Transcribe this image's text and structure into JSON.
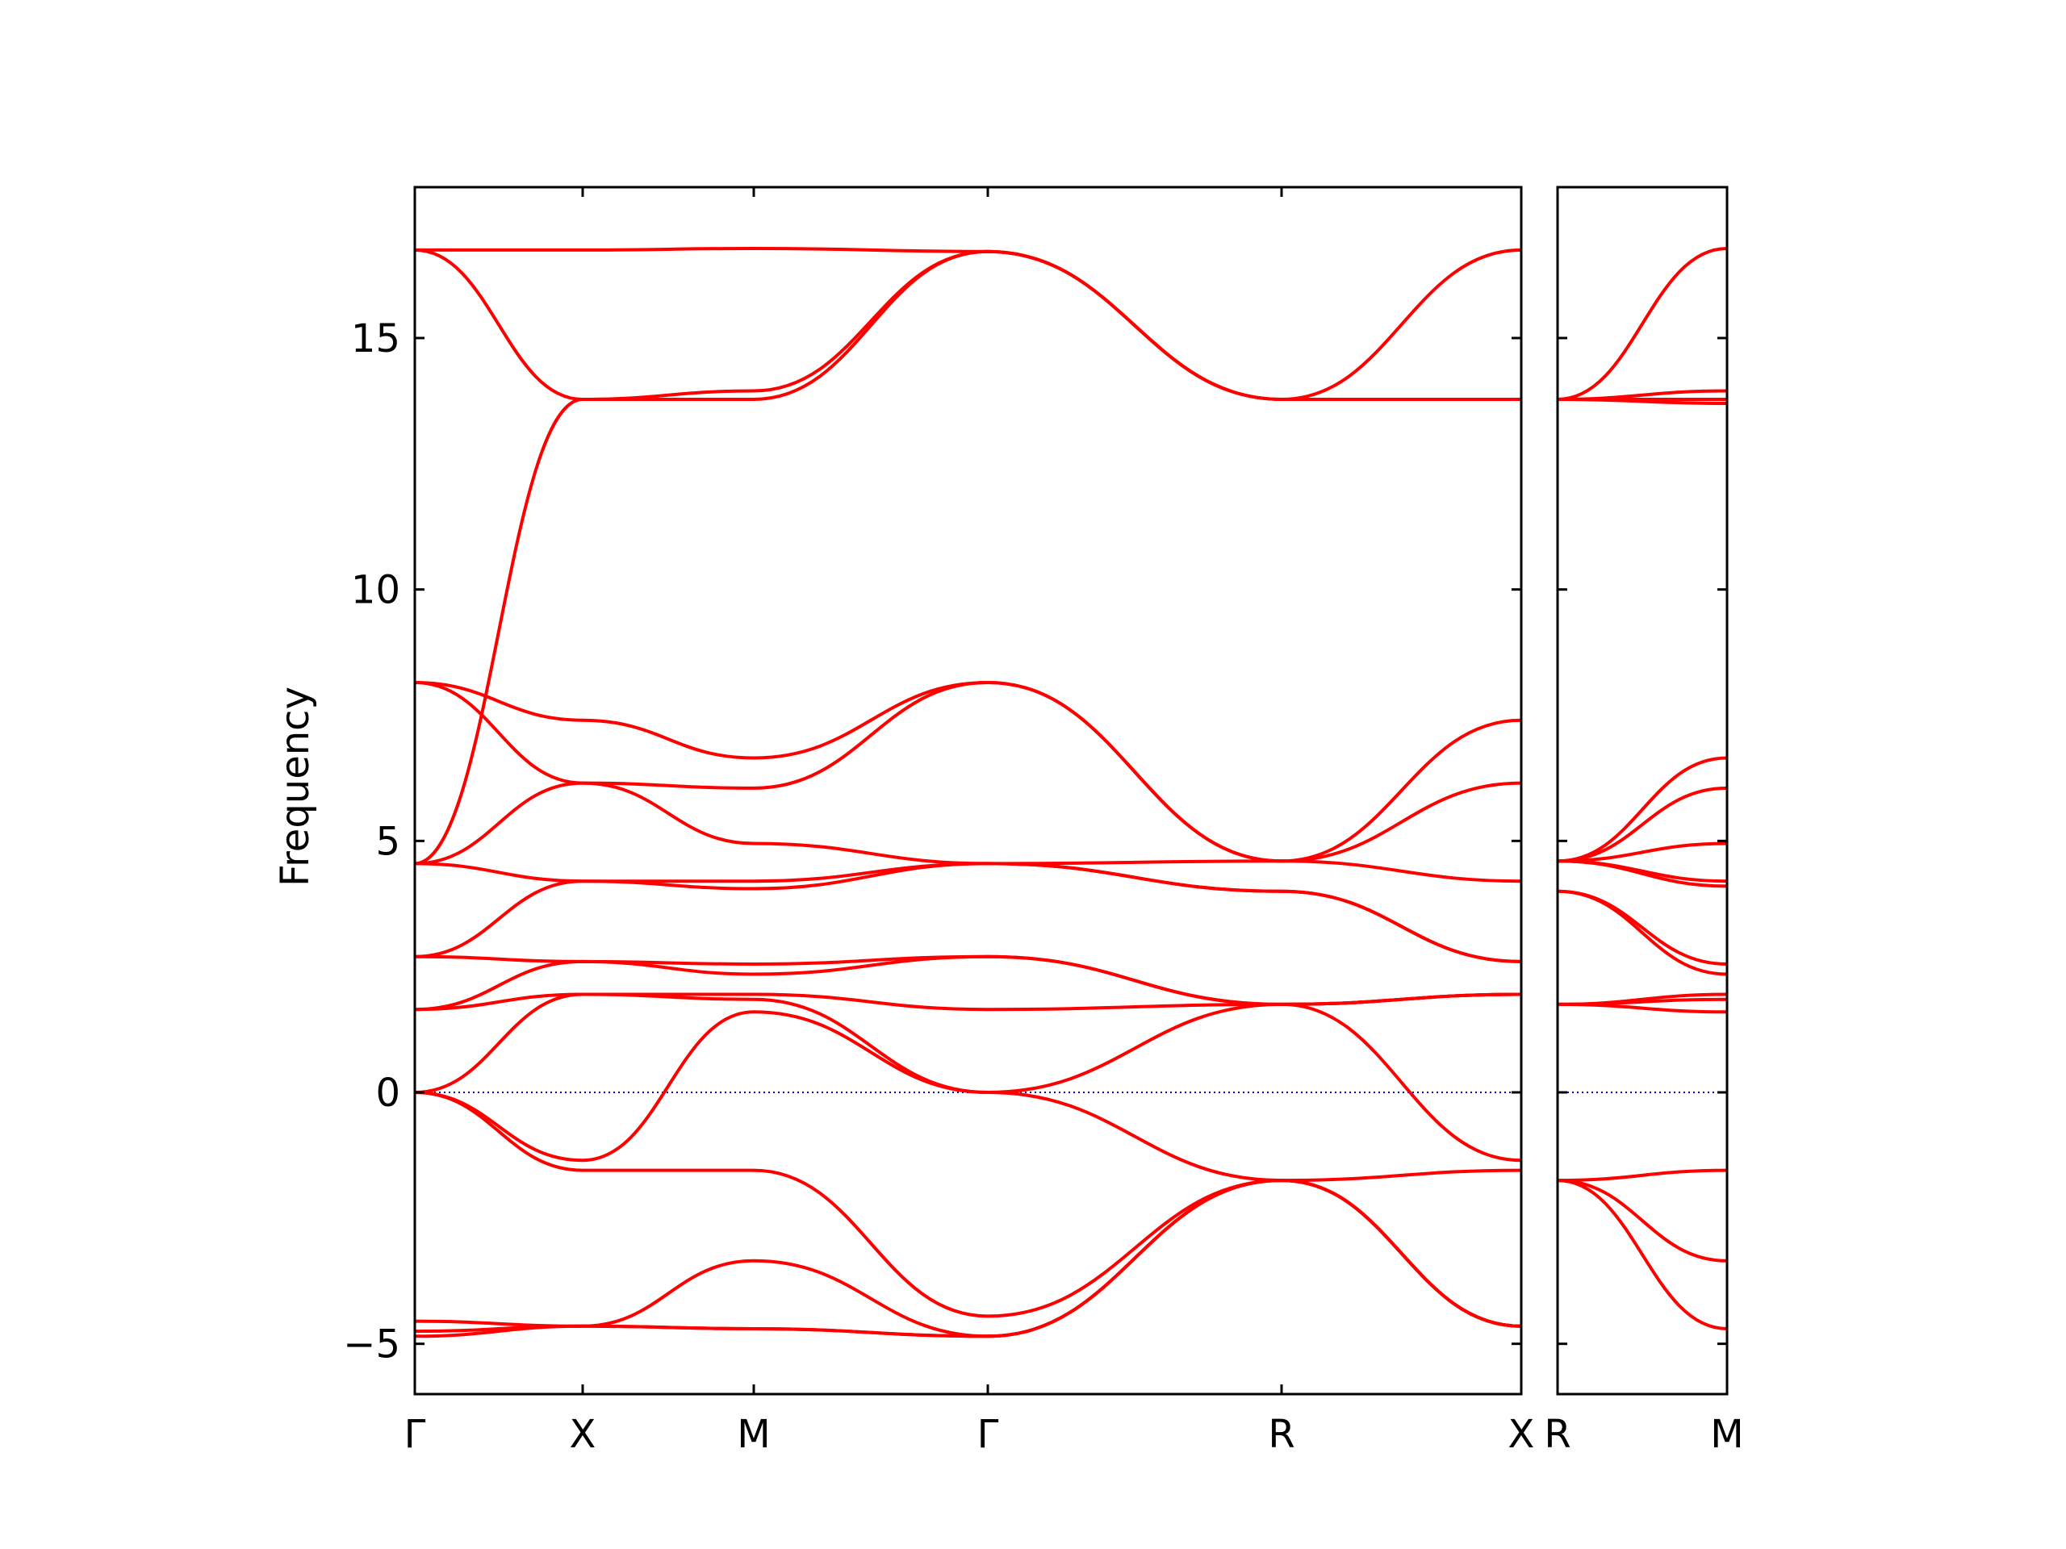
{
  "chart_data": {
    "type": "line",
    "ylabel": "Frequency",
    "ylim": [
      -6.0,
      18.0
    ],
    "yticks": [
      {
        "value": -5,
        "label": "−5"
      },
      {
        "value": 0,
        "label": "0"
      },
      {
        "value": 5,
        "label": "5"
      },
      {
        "value": 10,
        "label": "10"
      },
      {
        "value": 15,
        "label": "15"
      }
    ],
    "grid": false,
    "band_color": "#ff0000",
    "zero_line_color": "#0000cc",
    "panels": [
      {
        "xticks": [
          "Γ",
          "X",
          "M",
          "Γ",
          "R",
          "X"
        ],
        "bands": [
          {
            "k": [
              0,
              1,
              2,
              3,
              4,
              5
            ],
            "f": [
              16.75,
              16.75,
              16.78,
              16.72,
              13.78,
              16.75
            ]
          },
          {
            "k": [
              0,
              1,
              2,
              3,
              4,
              5
            ],
            "f": [
              16.75,
              13.78,
              13.95,
              16.72,
              13.78,
              13.78
            ]
          },
          {
            "k": [
              0,
              1,
              2,
              3,
              4,
              5
            ],
            "f": [
              4.55,
              13.78,
              13.78,
              16.72,
              13.78,
              13.78
            ]
          },
          {
            "k": [
              0,
              1,
              2,
              3,
              4,
              5
            ],
            "f": [
              8.15,
              7.4,
              6.65,
              8.15,
              4.6,
              7.4
            ]
          },
          {
            "k": [
              0,
              1,
              2,
              3,
              4,
              5
            ],
            "f": [
              8.15,
              6.15,
              6.05,
              8.15,
              4.6,
              6.15
            ]
          },
          {
            "k": [
              0,
              1,
              2,
              3,
              4,
              5
            ],
            "f": [
              4.55,
              6.15,
              4.95,
              4.55,
              4.6,
              4.2
            ]
          },
          {
            "k": [
              0,
              1,
              2,
              3,
              4,
              5
            ],
            "f": [
              4.55,
              4.2,
              4.2,
              4.55,
              4.0,
              2.6
            ]
          },
          {
            "k": [
              0,
              1,
              2,
              3,
              4,
              5
            ],
            "f": [
              2.7,
              4.2,
              4.05,
              4.55,
              4.0,
              2.6
            ]
          },
          {
            "k": [
              0,
              1,
              2,
              3,
              4,
              5
            ],
            "f": [
              2.7,
              2.6,
              2.55,
              2.7,
              1.75,
              1.95
            ]
          },
          {
            "k": [
              0,
              1,
              2,
              3,
              4,
              5
            ],
            "f": [
              1.65,
              2.6,
              2.35,
              2.7,
              1.75,
              1.95
            ]
          },
          {
            "k": [
              0,
              1,
              2,
              3,
              4,
              5
            ],
            "f": [
              1.65,
              1.95,
              1.95,
              1.65,
              1.75,
              1.95
            ]
          },
          {
            "k": [
              0,
              1,
              2,
              3,
              4,
              5
            ],
            "f": [
              0.0,
              1.95,
              1.85,
              0.0,
              1.75,
              -1.35
            ]
          },
          {
            "k": [
              0,
              1,
              2,
              3,
              4,
              5
            ],
            "f": [
              0.0,
              -1.35,
              1.6,
              0.0,
              -1.75,
              -1.55
            ]
          },
          {
            "k": [
              0,
              1,
              2,
              3,
              4,
              5
            ],
            "f": [
              0.0,
              -1.55,
              -1.55,
              -4.45,
              -1.75,
              -4.65
            ]
          },
          {
            "k": [
              0,
              1,
              2,
              3,
              4,
              5
            ],
            "f": [
              -4.55,
              -4.65,
              -3.35,
              -4.85,
              -1.75,
              -4.65
            ]
          },
          {
            "k": [
              0,
              1,
              2,
              3,
              4,
              5
            ],
            "f": [
              -4.75,
              -4.65,
              -4.7,
              -4.85,
              -1.75,
              -4.65
            ]
          },
          {
            "k": [
              0,
              1,
              2,
              3,
              4,
              5
            ],
            "f": [
              -4.85,
              -4.65,
              -4.7,
              -4.85,
              -1.75,
              -4.65
            ]
          }
        ]
      },
      {
        "xticks": [
          "R",
          "M"
        ],
        "bands": [
          {
            "k": [
              0,
              1
            ],
            "f": [
              13.78,
              16.78
            ]
          },
          {
            "k": [
              0,
              1
            ],
            "f": [
              13.78,
              13.95
            ]
          },
          {
            "k": [
              0,
              1
            ],
            "f": [
              13.78,
              13.78
            ]
          },
          {
            "k": [
              0,
              1
            ],
            "f": [
              13.78,
              13.7
            ]
          },
          {
            "k": [
              0,
              1
            ],
            "f": [
              4.6,
              6.65
            ]
          },
          {
            "k": [
              0,
              1
            ],
            "f": [
              4.6,
              6.05
            ]
          },
          {
            "k": [
              0,
              1
            ],
            "f": [
              4.6,
              4.95
            ]
          },
          {
            "k": [
              0,
              1
            ],
            "f": [
              4.6,
              4.2
            ]
          },
          {
            "k": [
              0,
              1
            ],
            "f": [
              4.6,
              4.1
            ]
          },
          {
            "k": [
              0,
              1
            ],
            "f": [
              4.0,
              2.55
            ]
          },
          {
            "k": [
              0,
              1
            ],
            "f": [
              4.0,
              2.35
            ]
          },
          {
            "k": [
              0,
              1
            ],
            "f": [
              1.75,
              1.95
            ]
          },
          {
            "k": [
              0,
              1
            ],
            "f": [
              1.75,
              1.85
            ]
          },
          {
            "k": [
              0,
              1
            ],
            "f": [
              1.75,
              1.6
            ]
          },
          {
            "k": [
              0,
              1
            ],
            "f": [
              -1.75,
              -1.55
            ]
          },
          {
            "k": [
              0,
              1
            ],
            "f": [
              -1.75,
              -3.35
            ]
          },
          {
            "k": [
              0,
              1
            ],
            "f": [
              -1.75,
              -4.7
            ]
          }
        ]
      }
    ]
  }
}
